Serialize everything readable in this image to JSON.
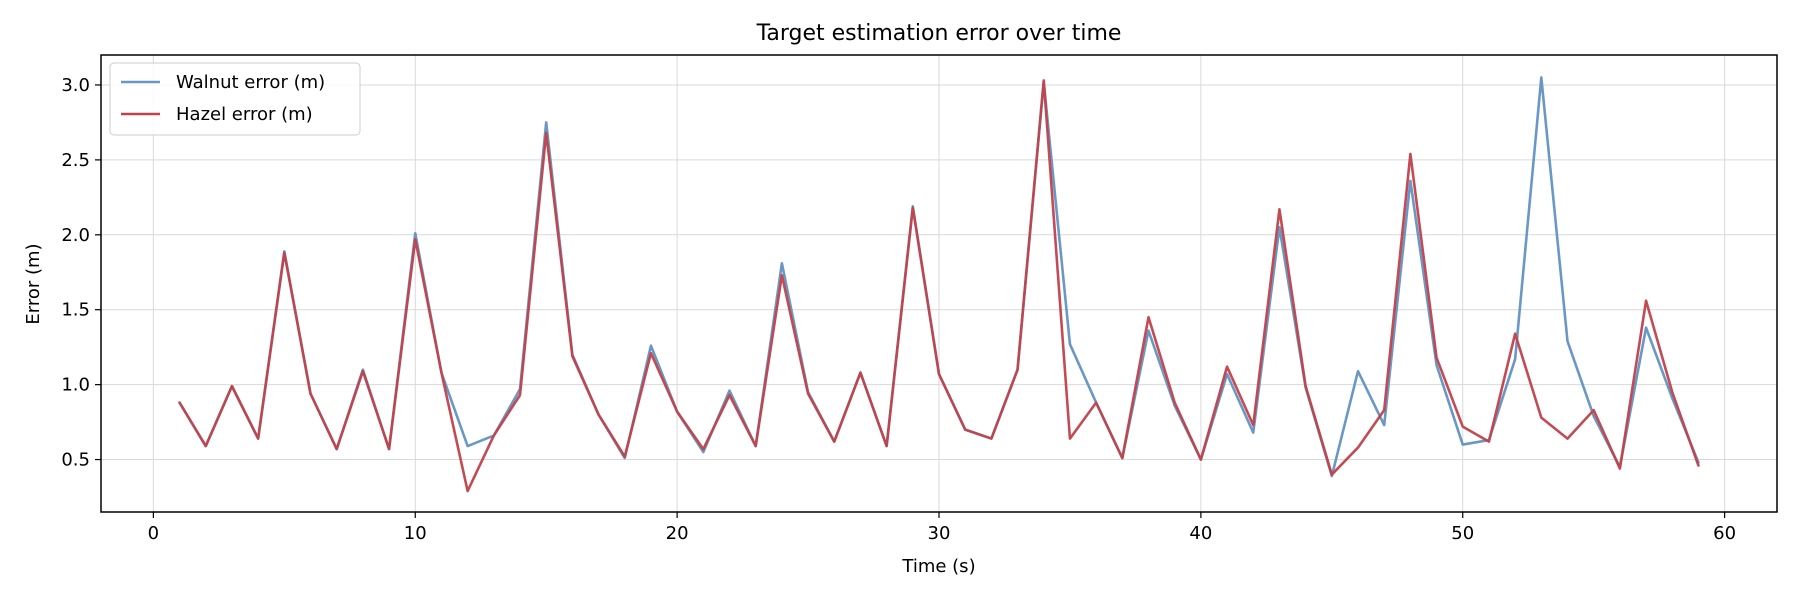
{
  "chart_data": {
    "type": "line",
    "title": "Target estimation error over time",
    "xlabel": "Time (s)",
    "ylabel": "Error (m)",
    "xlim": [
      -2,
      62
    ],
    "ylim": [
      0.15,
      3.2
    ],
    "xticks": [
      0,
      10,
      20,
      30,
      40,
      50,
      60
    ],
    "yticks": [
      0.5,
      1.0,
      1.5,
      2.0,
      2.5,
      3.0
    ],
    "xtick_labels": [
      "0",
      "10",
      "20",
      "30",
      "40",
      "50",
      "60"
    ],
    "ytick_labels": [
      "0.5",
      "1.0",
      "1.5",
      "2.0",
      "2.5",
      "3.0"
    ],
    "grid": true,
    "legend_position": "top-left",
    "x": [
      1,
      2,
      3,
      4,
      5,
      6,
      7,
      8,
      9,
      10,
      11,
      12,
      13,
      14,
      15,
      16,
      17,
      18,
      19,
      20,
      21,
      22,
      23,
      24,
      25,
      26,
      27,
      28,
      29,
      30,
      31,
      32,
      33,
      34,
      35,
      36,
      37,
      38,
      39,
      40,
      41,
      42,
      43,
      44,
      45,
      46,
      47,
      48,
      49,
      50,
      51,
      52,
      53,
      54,
      55,
      56,
      57,
      58,
      59
    ],
    "series": [
      {
        "name": "Walnut error (m)",
        "color": "#6a98c6",
        "values": [
          0.88,
          0.59,
          0.99,
          0.64,
          1.89,
          0.94,
          0.57,
          1.1,
          0.57,
          2.01,
          1.08,
          0.59,
          0.66,
          0.97,
          2.75,
          1.2,
          0.8,
          0.51,
          1.26,
          0.82,
          0.55,
          0.96,
          0.59,
          1.81,
          0.95,
          0.62,
          1.08,
          0.59,
          2.19,
          1.07,
          0.7,
          0.64,
          1.1,
          3.02,
          1.27,
          0.88,
          0.51,
          1.36,
          0.86,
          0.5,
          1.07,
          0.68,
          2.05,
          0.98,
          0.39,
          1.09,
          0.73,
          2.36,
          1.13,
          0.6,
          0.63,
          1.17,
          3.05,
          1.29,
          0.79,
          0.45,
          1.38,
          0.91,
          0.48
        ]
      },
      {
        "name": "Hazel error (m)",
        "color": "#c0424b",
        "values": [
          0.88,
          0.59,
          0.99,
          0.64,
          1.88,
          0.94,
          0.57,
          1.09,
          0.57,
          1.97,
          1.08,
          0.29,
          0.66,
          0.93,
          2.68,
          1.19,
          0.8,
          0.52,
          1.21,
          0.82,
          0.57,
          0.93,
          0.59,
          1.73,
          0.94,
          0.62,
          1.08,
          0.59,
          2.18,
          1.07,
          0.7,
          0.64,
          1.1,
          3.03,
          0.64,
          0.88,
          0.51,
          1.45,
          0.88,
          0.5,
          1.12,
          0.73,
          2.17,
          0.99,
          0.4,
          0.58,
          0.83,
          2.54,
          1.18,
          0.72,
          0.62,
          1.34,
          0.78,
          0.64,
          0.83,
          0.44,
          1.56,
          0.95,
          0.46
        ]
      }
    ]
  }
}
